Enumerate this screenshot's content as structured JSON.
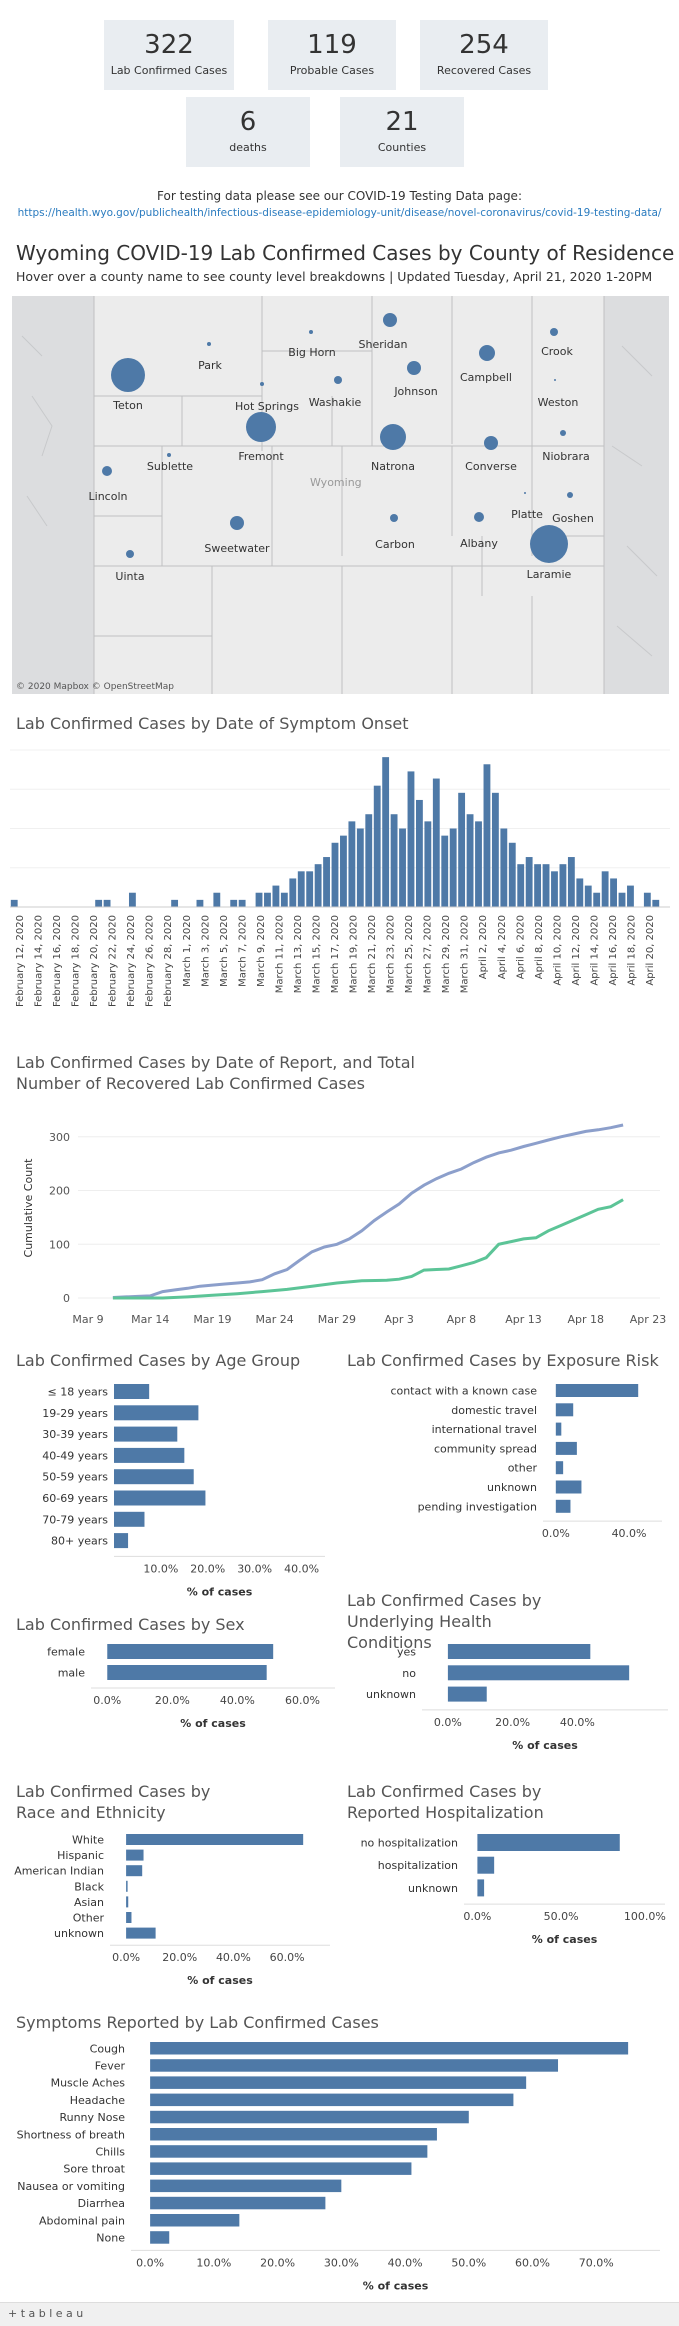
{
  "kpis": [
    {
      "value": "322",
      "label": "Lab Confirmed Cases"
    },
    {
      "value": "119",
      "label": "Probable Cases"
    },
    {
      "value": "254",
      "label": "Recovered Cases"
    },
    {
      "value": "6",
      "label": "deaths"
    },
    {
      "value": "21",
      "label": "Counties"
    }
  ],
  "testing": {
    "text": "For testing data please see our COVID-19 Testing Data page:",
    "link": "https://health.wyo.gov/publichealth/infectious-disease-epidemiology-unit/disease/novel-coronavirus/covid-19-testing-data/"
  },
  "map": {
    "title": "Wyoming COVID-19 Lab Confirmed Cases by County of Residence",
    "subtitle": "Hover over a county name to see county level breakdowns | Updated Tuesday, April 21, 2020 1-20PM",
    "state_label": "Wyoming",
    "attribution": "© 2020 Mapbox © OpenStreetMap",
    "counties": [
      "Sheridan",
      "Crook",
      "Park",
      "Big Horn",
      "Campbell",
      "Teton",
      "Johnson",
      "Washakie",
      "Hot Springs",
      "Weston",
      "Fremont",
      "Natrona",
      "Niobrara",
      "Converse",
      "Sublette",
      "Lincoln",
      "Platte",
      "Goshen",
      "Sweetwater",
      "Carbon",
      "Albany",
      "Laramie",
      "Uinta"
    ]
  },
  "chart_data": [
    {
      "type": "bar",
      "title": "Lab Confirmed Cases by Date of Symptom Onset",
      "x_tick_labels": [
        "February 12, 2020",
        "February 14, 2020",
        "February 16, 2020",
        "February 18, 2020",
        "February 20, 2020",
        "February 22, 2020",
        "February 24, 2020",
        "February 26, 2020",
        "February 28, 2020",
        "March 1, 2020",
        "March 3, 2020",
        "March 5, 2020",
        "March 7, 2020",
        "March 9, 2020",
        "March 11, 2020",
        "March 13, 2020",
        "March 15, 2020",
        "March 17, 2020",
        "March 19, 2020",
        "March 21, 2020",
        "March 23, 2020",
        "March 25, 2020",
        "March 27, 2020",
        "March 29, 2020",
        "March 31, 2020",
        "April 2, 2020",
        "April 4, 2020",
        "April 6, 2020",
        "April 8, 2020",
        "April 10, 2020",
        "April 12, 2020",
        "April 14, 2020",
        "April 16, 2020",
        "April 18, 2020",
        "April 20, 2020"
      ],
      "values": [
        1,
        0,
        0,
        0,
        0,
        0,
        0,
        0,
        0,
        0,
        1,
        1,
        0,
        0,
        2,
        0,
        0,
        0,
        0,
        1,
        0,
        0,
        1,
        0,
        2,
        0,
        1,
        1,
        0,
        2,
        2,
        3,
        2,
        4,
        5,
        5,
        6,
        7,
        9,
        10,
        12,
        11,
        13,
        17,
        21,
        13,
        11,
        19,
        15,
        12,
        18,
        10,
        11,
        16,
        13,
        12,
        20,
        16,
        11,
        9,
        6,
        7,
        6,
        6,
        5,
        6,
        7,
        4,
        3,
        2,
        5,
        4,
        2,
        3,
        0,
        2,
        1
      ],
      "ylim": [
        0,
        22
      ]
    },
    {
      "type": "line",
      "title": "Lab Confirmed Cases by Date of Report, and Total Number of Recovered Lab Confirmed Cases",
      "ylabel": "Cumulative Count",
      "x_tick_labels": [
        "Mar 9",
        "Mar 14",
        "Mar 19",
        "Mar 24",
        "Mar 29",
        "Apr 3",
        "Apr 8",
        "Apr 13",
        "Apr 18",
        "Apr 23"
      ],
      "y_tick_labels": [
        "0",
        "100",
        "200",
        "300"
      ],
      "ylim": [
        0,
        335
      ],
      "x_days_from_mar9": [
        0,
        5,
        10,
        15,
        20,
        25,
        30,
        35,
        40,
        45
      ],
      "series": [
        {
          "color": "#8c9fcb",
          "days": [
            2,
            3,
            4,
            5,
            6,
            7,
            8,
            9,
            10,
            11,
            12,
            13,
            14,
            15,
            16,
            17,
            18,
            19,
            20,
            21,
            22,
            23,
            24,
            25,
            26,
            27,
            28,
            29,
            30,
            31,
            32,
            33,
            34,
            35,
            36,
            37,
            38,
            39,
            40,
            41,
            42,
            43
          ],
          "values": [
            1,
            2,
            3,
            4,
            12,
            15,
            18,
            22,
            24,
            26,
            28,
            30,
            34,
            45,
            53,
            70,
            86,
            95,
            100,
            110,
            125,
            144,
            160,
            175,
            195,
            210,
            222,
            232,
            240,
            252,
            262,
            270,
            275,
            282,
            288,
            294,
            300,
            305,
            310,
            313,
            317,
            322
          ]
        },
        {
          "color": "#5cc497",
          "days": [
            2,
            6,
            8,
            10,
            12,
            14,
            16,
            18,
            20,
            22,
            24,
            25,
            26,
            27,
            28,
            29,
            30,
            31,
            32,
            33,
            34,
            35,
            36,
            37,
            38,
            39,
            40,
            41,
            42,
            43
          ],
          "values": [
            0,
            0,
            2,
            5,
            8,
            12,
            16,
            22,
            28,
            32,
            33,
            35,
            40,
            52,
            53,
            54,
            60,
            66,
            75,
            100,
            105,
            110,
            112,
            125,
            135,
            145,
            155,
            165,
            170,
            183
          ]
        }
      ]
    },
    {
      "type": "bar",
      "title": "Lab Confirmed Cases by Age Group",
      "categories": [
        "≤ 18 years",
        "19-29 years",
        "30-39 years",
        "40-49 years",
        "50-59 years",
        "60-69 years",
        "70-79 years",
        "80+ years"
      ],
      "values": [
        7.5,
        18.0,
        13.5,
        15.0,
        17.0,
        19.5,
        6.5,
        3.0
      ],
      "tick_labels": [
        "10.0%",
        "20.0%",
        "30.0%",
        "40.0%"
      ],
      "xlabel": "% of cases",
      "xlim": [
        0,
        45
      ]
    },
    {
      "type": "bar",
      "title": "Lab Confirmed Cases by Exposure Risk",
      "categories": [
        "contact with a known case",
        "domestic travel",
        "international travel",
        "community spread",
        "other",
        "unknown",
        "pending investigation"
      ],
      "values": [
        45.0,
        9.5,
        3.0,
        11.5,
        4.0,
        14.0,
        8.0
      ],
      "tick_labels": [
        "0.0%",
        "40.0%"
      ],
      "xlim": [
        -7,
        58
      ]
    },
    {
      "type": "bar",
      "title": "Lab Confirmed Cases by Sex",
      "categories": [
        "female",
        "male"
      ],
      "values": [
        51.0,
        49.0
      ],
      "tick_labels": [
        "0.0%",
        "20.0%",
        "40.0%",
        "60.0%"
      ],
      "xlabel": "% of cases",
      "xlim": [
        -5,
        70
      ]
    },
    {
      "type": "bar",
      "title": "Lab Confirmed Cases by Underlying Health Conditions",
      "categories": [
        "yes",
        "no",
        "unknown"
      ],
      "values": [
        44.0,
        56.0,
        12.0
      ],
      "tick_labels": [
        "0.0%",
        "20.0%",
        "40.0%"
      ],
      "xlabel": "% of cases",
      "xlim": [
        -8,
        68
      ]
    },
    {
      "type": "bar",
      "title": "Lab Confirmed Cases by Race and Ethnicity",
      "categories": [
        "White",
        "Hispanic",
        "American Indian",
        "Black",
        "Asian",
        "Other",
        "unknown"
      ],
      "values": [
        66.0,
        6.5,
        6.0,
        0.5,
        0.8,
        2.0,
        11.0
      ],
      "tick_labels": [
        "0.0%",
        "20.0%",
        "40.0%",
        "60.0%"
      ],
      "xlabel": "% of cases",
      "xlim": [
        -6,
        76
      ]
    },
    {
      "type": "bar",
      "title": "Lab Confirmed Cases by Reported Hospitalization",
      "categories": [
        "no hospitalization",
        "hospitalization",
        "unknown"
      ],
      "values": [
        85.0,
        10.0,
        4.0
      ],
      "tick_labels": [
        "0.0%",
        "50.0%",
        "100.0%"
      ],
      "xlabel": "% of cases",
      "xlim": [
        -8,
        112
      ]
    },
    {
      "type": "bar",
      "title": "Symptoms Reported by Lab Confirmed Cases",
      "categories": [
        "Cough",
        "Fever",
        "Muscle Aches",
        "Headache",
        "Runny Nose",
        "Shortness of breath",
        "Chills",
        "Sore throat",
        "Nausea or vomiting",
        "Diarrhea",
        "Abdominal pain",
        "None"
      ],
      "values": [
        75.0,
        64.0,
        59.0,
        57.0,
        50.0,
        45.0,
        43.5,
        41.0,
        30.0,
        27.5,
        14.0,
        3.0
      ],
      "tick_labels": [
        "0.0%",
        "10.0%",
        "20.0%",
        "30.0%",
        "40.0%",
        "50.0%",
        "60.0%",
        "70.0%"
      ],
      "xlabel": "% of cases",
      "xlim": [
        -3,
        80
      ]
    }
  ],
  "footer": {
    "brand": "+ t a b l e a u"
  }
}
